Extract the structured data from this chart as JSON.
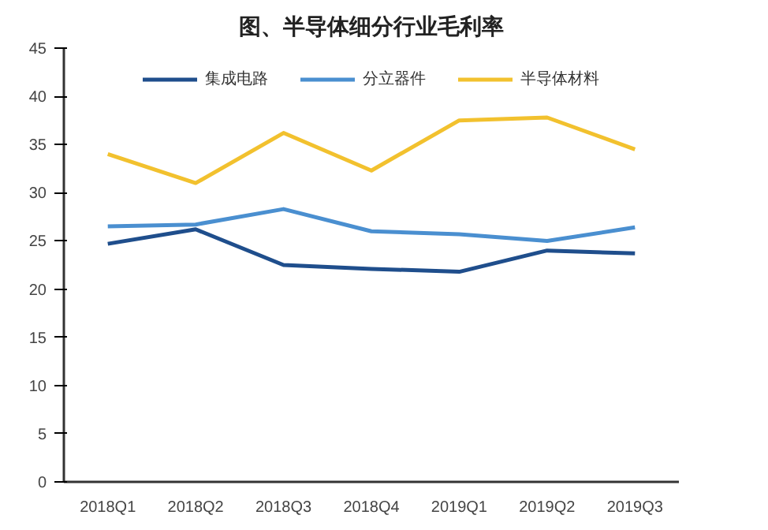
{
  "chart_data": {
    "type": "line",
    "title": "图、半导体细分行业毛利率",
    "categories": [
      "2018Q1",
      "2018Q2",
      "2018Q3",
      "2018Q4",
      "2019Q1",
      "2019Q2",
      "2019Q3"
    ],
    "series": [
      {
        "name": "集成电路",
        "color": "#1f4e8c",
        "values": [
          24.7,
          26.2,
          22.5,
          22.1,
          21.8,
          24.0,
          23.7
        ]
      },
      {
        "name": "分立器件",
        "color": "#4a8fd0",
        "values": [
          26.5,
          26.7,
          28.3,
          26.0,
          25.7,
          25.0,
          26.4
        ]
      },
      {
        "name": "半导体材料",
        "color": "#f2c12e",
        "values": [
          34.0,
          31.0,
          36.2,
          32.3,
          37.5,
          37.8,
          34.5
        ]
      }
    ],
    "ylim": [
      0,
      45
    ],
    "yticks": [
      0,
      5,
      10,
      15,
      20,
      25,
      30,
      35,
      40,
      45
    ],
    "grid": false,
    "legend": "top",
    "marker": "none",
    "line_style": "solid"
  }
}
